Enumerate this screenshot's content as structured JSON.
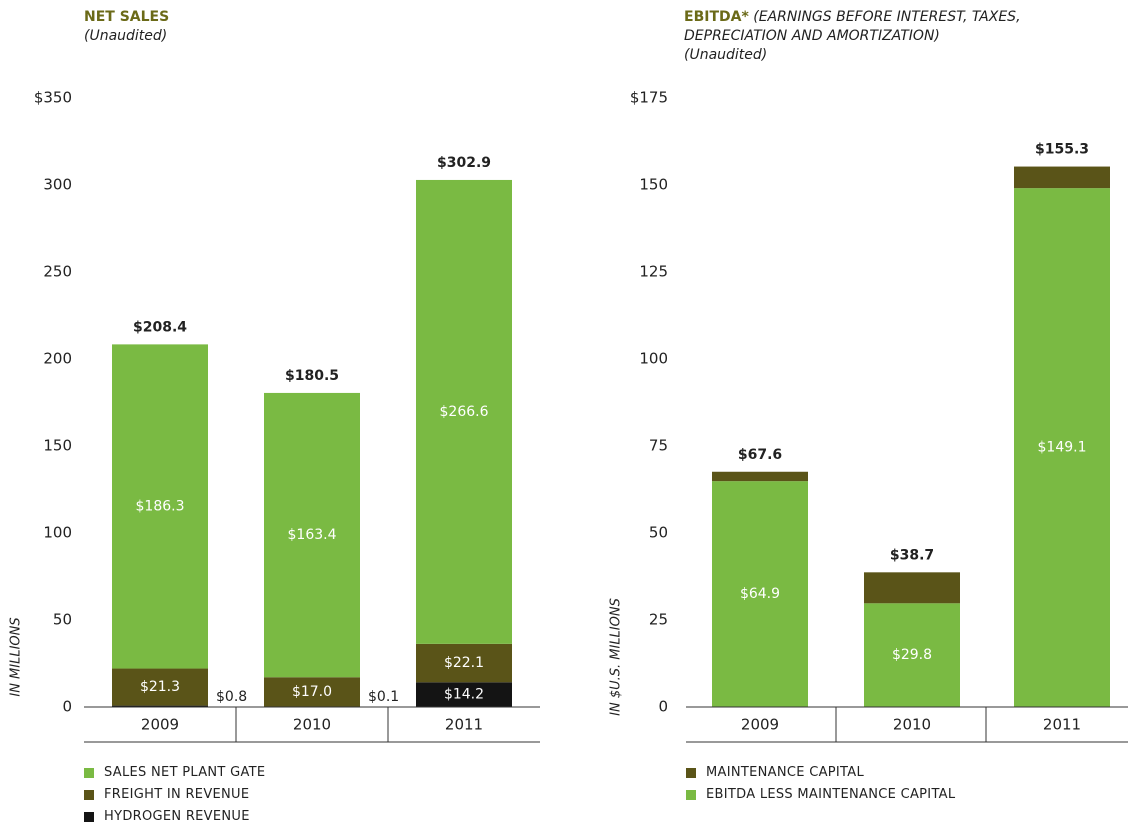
{
  "chart_data": [
    {
      "type": "stacked_bar",
      "title": "NET SALES",
      "subtitle": "(Unaudited)",
      "y_label": "IN MILLIONS",
      "categories": [
        "2009",
        "2010",
        "2011"
      ],
      "series": [
        {
          "name": "SALES NET PLANT GATE",
          "color": "#7aba43",
          "values": [
            186.3,
            163.4,
            266.6
          ],
          "value_labels": [
            "$186.3",
            "$163.4",
            "$266.6"
          ]
        },
        {
          "name": "FREIGHT IN REVENUE",
          "color": "#5a5418",
          "values": [
            21.3,
            17.0,
            22.1
          ],
          "value_labels": [
            "$21.3",
            "$17.0",
            "$22.1"
          ]
        },
        {
          "name": "HYDROGEN REVENUE",
          "color": "#141414",
          "values": [
            0.8,
            0.1,
            14.2
          ],
          "value_labels": [
            "$0.8",
            "$0.1",
            "$14.2"
          ]
        }
      ],
      "totals": [
        208.4,
        180.5,
        302.9
      ],
      "total_labels": [
        "$208.4",
        "$180.5",
        "$302.9"
      ],
      "ylim": [
        0,
        350
      ],
      "yticks": [
        0,
        50,
        100,
        150,
        200,
        250,
        300,
        {
          "value": 350,
          "label": "$350"
        }
      ]
    },
    {
      "type": "stacked_bar",
      "title": "EBITDA*",
      "title_note": "(EARNINGS BEFORE INTEREST, TAXES, DEPRECIATION AND AMORTIZATION)",
      "subtitle": "(Unaudited)",
      "y_label": "IN $U.S. MILLIONS",
      "categories": [
        "2009",
        "2010",
        "2011"
      ],
      "series": [
        {
          "name": "MAINTENANCE CAPITAL",
          "color": "#5a5418",
          "values": [
            2.7,
            8.9,
            6.2
          ]
        },
        {
          "name": "EBITDA LESS MAINTENANCE CAPITAL",
          "color": "#7aba43",
          "values": [
            64.9,
            29.8,
            149.1
          ],
          "value_labels": [
            "$64.9",
            "$29.8",
            "$149.1"
          ]
        }
      ],
      "totals": [
        67.6,
        38.7,
        155.3
      ],
      "total_labels": [
        "$67.6",
        "$38.7",
        "$155.3"
      ],
      "ylim": [
        0,
        175
      ],
      "yticks": [
        0,
        25,
        50,
        75,
        100,
        125,
        150,
        {
          "value": 175,
          "label": "$175"
        }
      ]
    }
  ]
}
